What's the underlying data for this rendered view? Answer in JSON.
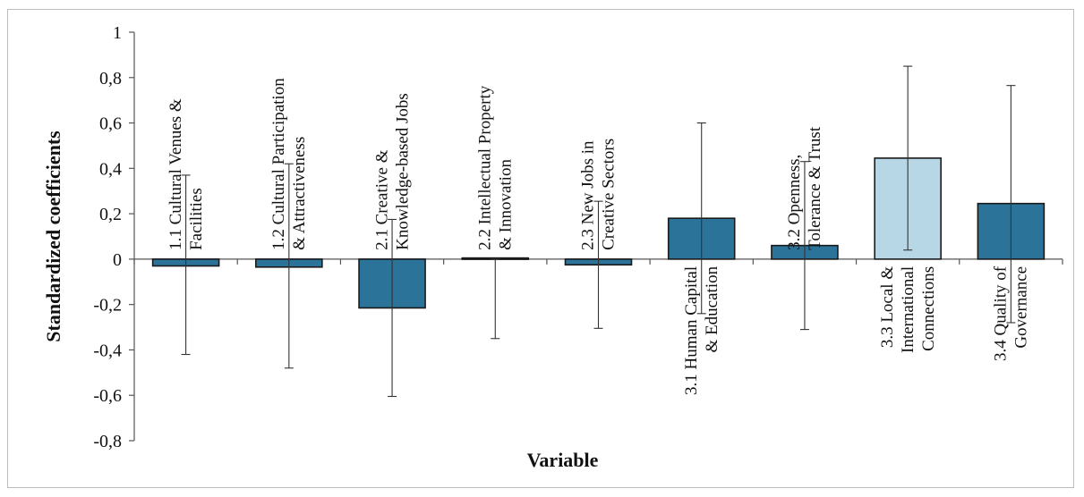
{
  "chart_data": {
    "type": "bar",
    "title": "",
    "xlabel": "Variable",
    "ylabel": "Standardized coefficients",
    "ylim": [
      -0.8,
      1
    ],
    "yticks": [
      1,
      0.8,
      0.6,
      0.4,
      0.2,
      0,
      -0.2,
      -0.4,
      -0.6,
      -0.8
    ],
    "ytick_labels": [
      "1",
      "0,8",
      "0,6",
      "0,4",
      "0,2",
      "0",
      "-0,2",
      "-0,4",
      "-0,6",
      "-0,8"
    ],
    "grid": false,
    "categories": [
      [
        "1.1 Cultural Venues &",
        "Facilities"
      ],
      [
        "1.2 Cultural Participation",
        "& Attractiveness"
      ],
      [
        "2.1 Creative &",
        "Knowledge-based Jobs"
      ],
      [
        "2.2 Intellectual Property",
        "& Innovation"
      ],
      [
        "2.3 New Jobs in",
        "Creative Sectors"
      ],
      [
        "3.1 Human Capital",
        "& Education"
      ],
      [
        "3.2 Openness,",
        "Tolerance & Trust"
      ],
      [
        "3.3 Local &",
        "International",
        "Connections"
      ],
      [
        "3.4 Quality of",
        "Governance"
      ]
    ],
    "values": [
      -0.03,
      -0.035,
      -0.215,
      0.005,
      -0.025,
      0.18,
      0.06,
      0.445,
      0.245
    ],
    "error_low": [
      -0.42,
      -0.48,
      -0.605,
      -0.35,
      -0.305,
      -0.24,
      -0.31,
      0.04,
      -0.28
    ],
    "error_high": [
      0.37,
      0.42,
      0.175,
      0.0,
      0.255,
      0.6,
      0.43,
      0.85,
      0.765
    ],
    "bar_colors": [
      "#2b7399",
      "#2b7399",
      "#2b7399",
      "#2b7399",
      "#2b7399",
      "#2b7399",
      "#2b7399",
      "#b8d7e6",
      "#2b7399"
    ],
    "label_side": [
      "above",
      "above",
      "above",
      "above",
      "above",
      "below",
      "above",
      "below",
      "below"
    ]
  }
}
